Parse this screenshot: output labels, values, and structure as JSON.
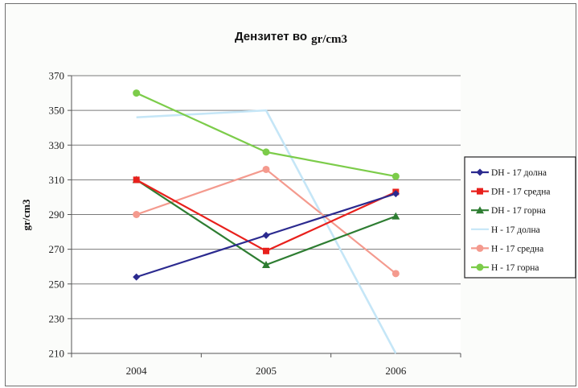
{
  "chart_data": {
    "type": "line",
    "title": "Дензитет во",
    "title_unit": "gr/cm3",
    "xlabel": "",
    "ylabel": "gr/cm3",
    "categories": [
      "2004",
      "2005",
      "2006"
    ],
    "ylim": [
      210,
      370
    ],
    "yticks": [
      210,
      230,
      250,
      270,
      290,
      310,
      330,
      350,
      370
    ],
    "grid": true,
    "legend_position": "right",
    "series": [
      {
        "name": "DH - 17 долна",
        "color": "#2b2a8f",
        "marker": "diamond",
        "values": [
          254,
          278,
          302
        ]
      },
      {
        "name": "DH - 17 средна",
        "color": "#e8201c",
        "marker": "square",
        "values": [
          310,
          269,
          303
        ]
      },
      {
        "name": "DH - 17 горна",
        "color": "#2e7d32",
        "marker": "triangle",
        "values": [
          310,
          261,
          289
        ]
      },
      {
        "name": "H - 17 долна",
        "color": "#c5e6f7",
        "marker": "none",
        "values": [
          346,
          350,
          210
        ]
      },
      {
        "name": "H - 17 средна",
        "color": "#f49a8e",
        "marker": "circle",
        "values": [
          290,
          316,
          256
        ]
      },
      {
        "name": "H - 17 горна",
        "color": "#7ccc4a",
        "marker": "circle",
        "values": [
          360,
          326,
          312
        ]
      }
    ]
  }
}
